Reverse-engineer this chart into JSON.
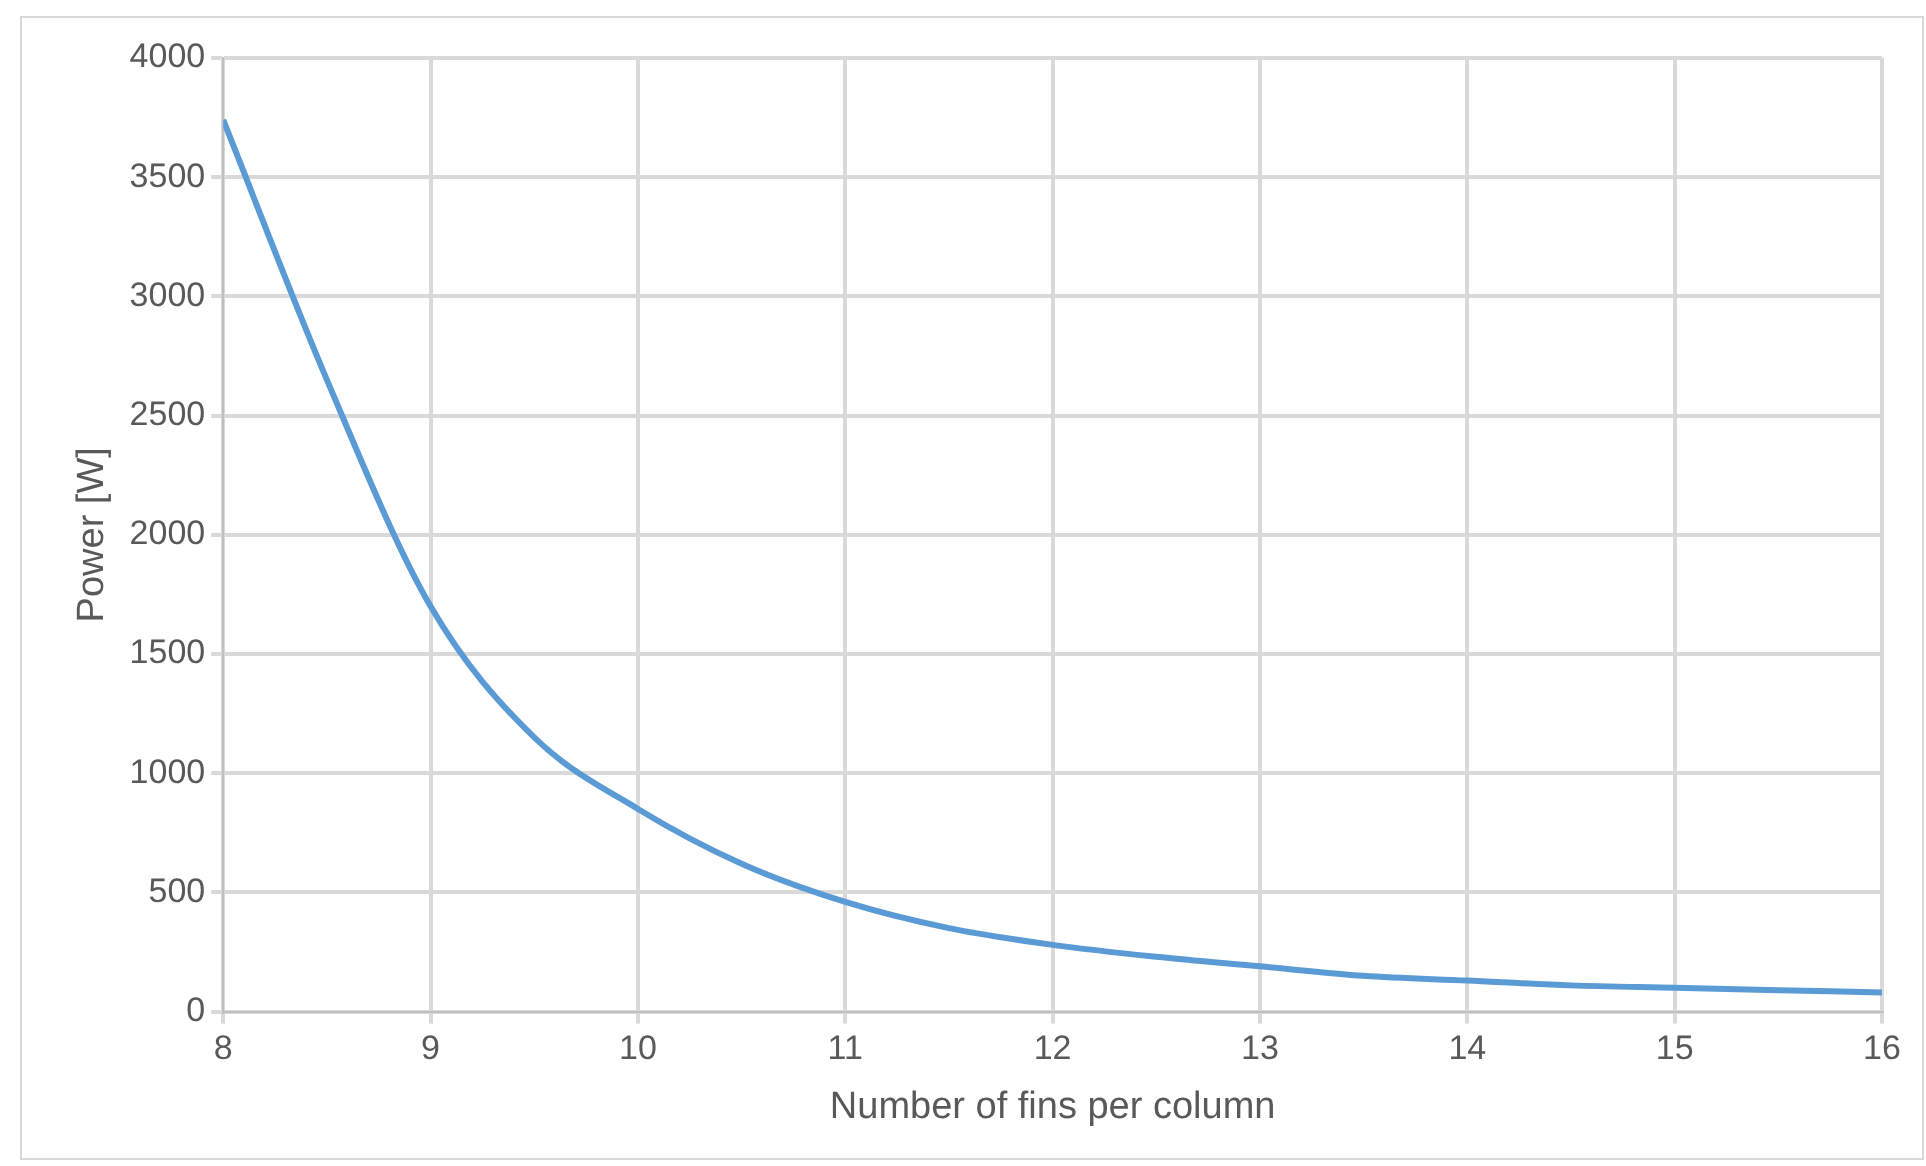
{
  "chart_data": {
    "type": "line",
    "xlabel": "Number of fins per column",
    "ylabel": "Power [W]",
    "x": [
      8,
      8.5,
      9,
      9.5,
      10,
      10.5,
      11,
      11.5,
      12,
      12.5,
      13,
      13.5,
      14,
      14.5,
      15,
      15.5,
      16
    ],
    "series": [
      {
        "color": "#5b9bd5",
        "values": [
          3740,
          2650,
          1700,
          1150,
          850,
          620,
          460,
          350,
          280,
          230,
          190,
          150,
          130,
          110,
          100,
          90,
          80
        ]
      }
    ],
    "xlim": [
      8,
      16
    ],
    "xticks": [
      8,
      9,
      10,
      11,
      12,
      13,
      14,
      15,
      16
    ],
    "ylim": [
      0,
      4000
    ],
    "yticks": [
      0,
      500,
      1000,
      1500,
      2000,
      2500,
      3000,
      3500,
      4000
    ],
    "grid": true,
    "legend": false,
    "marker": "none",
    "line_style": "solid"
  }
}
